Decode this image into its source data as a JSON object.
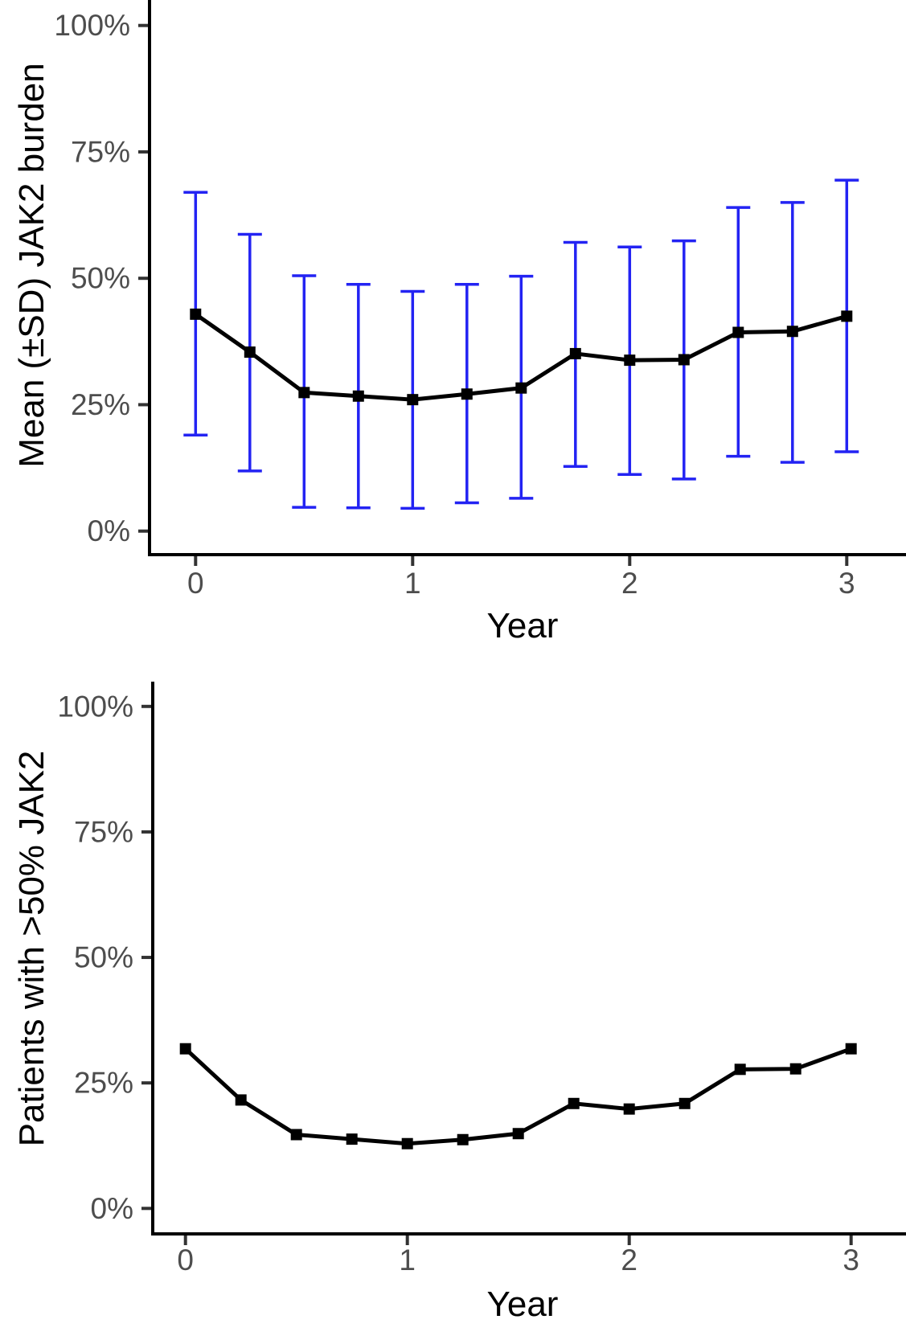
{
  "colors": {
    "series_line": "#000000",
    "marker": "#000000",
    "error_bar": "#2323f3",
    "axis_line": "#000000",
    "tick_mark": "#333333",
    "tick_label": "#4d4d4d",
    "axis_title": "#000000",
    "background": "#ffffff"
  },
  "chart_data": [
    {
      "type": "line",
      "title": "",
      "ylabel": "Mean (±SD) JAK2 burden",
      "xlabel": "Year",
      "marker": "square",
      "grid": false,
      "legend": "none",
      "xlim": [
        0,
        3
      ],
      "ylim": [
        0,
        100
      ],
      "x": [
        0,
        0.25,
        0.5,
        0.75,
        1,
        1.25,
        1.5,
        1.75,
        2,
        2.25,
        2.5,
        2.75,
        3
      ],
      "values": [
        42.9,
        35.4,
        27.4,
        26.7,
        26.0,
        27.1,
        28.3,
        35.1,
        33.8,
        33.9,
        39.3,
        39.5,
        42.5
      ],
      "error_lower": [
        19.0,
        11.9,
        4.7,
        4.6,
        4.5,
        5.6,
        6.5,
        12.8,
        11.2,
        10.3,
        14.8,
        13.6,
        15.7
      ],
      "error_upper": [
        67.0,
        58.7,
        50.5,
        48.8,
        47.4,
        48.8,
        50.4,
        57.1,
        56.2,
        57.4,
        64.0,
        65.0,
        69.4
      ],
      "xtick_values": [
        0,
        1,
        2,
        3
      ],
      "xtick_labels": [
        "0",
        "1",
        "2",
        "3"
      ],
      "ytick_values": [
        0,
        25,
        50,
        75,
        100
      ],
      "ytick_labels": [
        "0%",
        "25%",
        "50%",
        "75%",
        "100%"
      ]
    },
    {
      "type": "line",
      "title": "",
      "ylabel": "Patients with >50% JAK2",
      "xlabel": "Year",
      "marker": "square",
      "grid": false,
      "legend": "none",
      "xlim": [
        0,
        3
      ],
      "ylim": [
        0,
        100
      ],
      "x": [
        0,
        0.25,
        0.5,
        0.75,
        1,
        1.25,
        1.5,
        1.75,
        2,
        2.25,
        2.5,
        2.75,
        3
      ],
      "values": [
        31.8,
        21.6,
        14.7,
        13.8,
        12.9,
        13.7,
        14.9,
        20.9,
        19.8,
        20.9,
        27.7,
        27.8,
        31.8
      ],
      "xtick_values": [
        0,
        1,
        2,
        3
      ],
      "xtick_labels": [
        "0",
        "1",
        "2",
        "3"
      ],
      "ytick_values": [
        0,
        25,
        50,
        75,
        100
      ],
      "ytick_labels": [
        "0%",
        "25%",
        "50%",
        "75%",
        "100%"
      ]
    }
  ]
}
